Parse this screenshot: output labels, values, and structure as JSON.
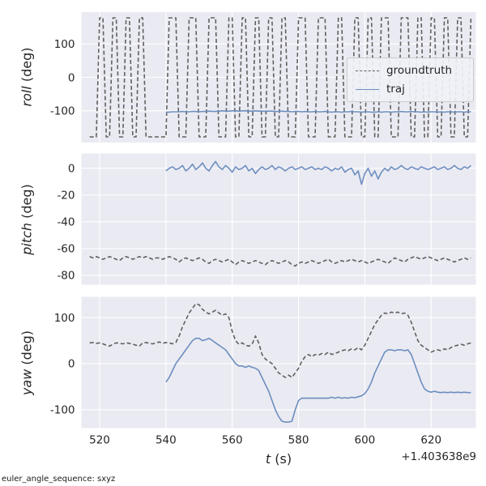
{
  "figure": {
    "background": "#ffffff",
    "axes_background": "#eaeaf2",
    "grid_color": "#ffffff",
    "tick_color": "#262626",
    "xlabel_var": "t",
    "xlabel_unit": "(s)",
    "x_offset_text": "+1.403638e9",
    "footer_note": "euler_angle_sequence: sxyz",
    "legend": {
      "position": "upper-right-of-roll-subplot",
      "entries": [
        {
          "label": "groundtruth",
          "color": "#606060",
          "dash": true
        },
        {
          "label": "traj",
          "color": "#6c8ebf",
          "dash": false
        }
      ]
    }
  },
  "t_groundtruth": [
    517,
    518,
    519,
    520,
    521,
    522,
    523,
    524,
    525,
    526,
    527,
    528,
    529,
    530,
    531,
    532,
    533,
    534,
    535,
    536,
    537,
    538,
    539,
    540,
    541,
    542,
    543,
    544,
    545,
    546,
    547,
    548,
    549,
    550,
    551,
    552,
    553,
    554,
    555,
    556,
    557,
    558,
    559,
    560,
    561,
    562,
    563,
    564,
    565,
    566,
    567,
    568,
    569,
    570,
    571,
    572,
    573,
    574,
    575,
    576,
    577,
    578,
    579,
    580,
    581,
    582,
    583,
    584,
    585,
    586,
    587,
    588,
    589,
    590,
    591,
    592,
    593,
    594,
    595,
    596,
    597,
    598,
    599,
    600,
    601,
    602,
    603,
    604,
    605,
    606,
    607,
    608,
    609,
    610,
    611,
    612,
    613,
    614,
    615,
    616,
    617,
    618,
    619,
    620,
    621,
    622,
    623,
    624,
    625,
    626,
    627,
    628,
    629,
    630,
    631,
    632
  ],
  "t_traj": [
    540,
    541,
    542,
    543,
    544,
    545,
    546,
    547,
    548,
    549,
    550,
    551,
    552,
    553,
    554,
    555,
    556,
    557,
    558,
    559,
    560,
    561,
    562,
    563,
    564,
    565,
    566,
    567,
    568,
    569,
    570,
    571,
    572,
    573,
    574,
    575,
    576,
    577,
    578,
    579,
    580,
    581,
    582,
    583,
    584,
    585,
    586,
    587,
    588,
    589,
    590,
    591,
    592,
    593,
    594,
    595,
    596,
    597,
    598,
    599,
    600,
    601,
    602,
    603,
    604,
    605,
    606,
    607,
    608,
    609,
    610,
    611,
    612,
    613,
    614,
    615,
    616,
    617,
    618,
    619,
    620,
    621,
    622,
    623,
    624,
    625,
    626,
    627,
    628,
    629,
    630,
    631,
    632
  ],
  "chart_data": [
    {
      "type": "line",
      "subplot": "roll",
      "ylabel_var": "roll",
      "ylabel_unit": "(deg)",
      "xlim": [
        514.5,
        633.5
      ],
      "ylim": [
        -195,
        195
      ],
      "xticks": [
        520,
        540,
        560,
        580,
        600,
        620
      ],
      "yticks": [
        -100,
        0,
        100
      ],
      "grid": true,
      "series": [
        {
          "name": "groundtruth",
          "color": "#606060",
          "dash": true,
          "x_ref": "t_groundtruth",
          "y": [
            -178,
            -178,
            -178,
            178,
            178,
            -178,
            -178,
            178,
            178,
            -178,
            -178,
            178,
            178,
            -178,
            -178,
            178,
            178,
            -178,
            -178,
            -178,
            -178,
            -178,
            -178,
            -178,
            178,
            178,
            178,
            -178,
            -178,
            -178,
            178,
            178,
            178,
            -178,
            -178,
            -178,
            178,
            178,
            178,
            -178,
            -178,
            -178,
            178,
            178,
            -178,
            -178,
            178,
            178,
            -178,
            -178,
            178,
            178,
            -178,
            -178,
            178,
            178,
            -178,
            -178,
            178,
            178,
            -178,
            -178,
            -178,
            178,
            178,
            178,
            -178,
            -178,
            -178,
            178,
            178,
            178,
            -178,
            -178,
            -178,
            178,
            178,
            -178,
            -178,
            -178,
            178,
            178,
            -178,
            -178,
            178,
            178,
            -178,
            -178,
            178,
            178,
            178,
            -178,
            -178,
            -178,
            178,
            178,
            178,
            -178,
            -178,
            178,
            178,
            -178,
            -178,
            178,
            178,
            -178,
            -178,
            178,
            178,
            -178,
            -178,
            178,
            178,
            -178,
            -178,
            178,
            178
          ]
        },
        {
          "name": "traj",
          "color": "#6c8ebf",
          "dash": false,
          "x_ref": "t_traj",
          "y": [
            -104,
            -104,
            -103,
            -103,
            -103,
            -102,
            -103,
            -103,
            -102,
            -102,
            -103,
            -102,
            -102,
            -101,
            -102,
            -102,
            -101,
            -100,
            -101,
            -101,
            -100,
            -100,
            -101,
            -100,
            -100,
            -101,
            -101,
            -100,
            -101,
            -101,
            -102,
            -101,
            -101,
            -102,
            -102,
            -101,
            -102,
            -102,
            -103,
            -102,
            -102,
            -103,
            -102,
            -103,
            -103,
            -102,
            -103,
            -103,
            -102,
            -103,
            -104,
            -103,
            -103,
            -104,
            -103,
            -103,
            -102,
            -103,
            -103,
            -104,
            -103,
            -103,
            -104,
            -104,
            -103,
            -104,
            -103,
            -103,
            -104,
            -103,
            -103,
            -102,
            -103,
            -103,
            -102,
            -103,
            -103,
            -104,
            -103,
            -104,
            -103,
            -103,
            -104,
            -103,
            -104,
            -103,
            -103,
            -104,
            -103,
            -103,
            -104,
            -103,
            -103
          ]
        }
      ]
    },
    {
      "type": "line",
      "subplot": "pitch",
      "ylabel_var": "pitch",
      "ylabel_unit": "(deg)",
      "xlim": [
        514.5,
        633.5
      ],
      "ylim": [
        -87,
        11
      ],
      "xticks": [
        520,
        540,
        560,
        580,
        600,
        620
      ],
      "yticks": [
        0,
        -20,
        -40,
        -60,
        -80
      ],
      "grid": true,
      "series": [
        {
          "name": "groundtruth",
          "color": "#606060",
          "dash": true,
          "x_ref": "t_groundtruth",
          "y": [
            -66,
            -67,
            -66,
            -67,
            -68,
            -67,
            -66,
            -67,
            -68,
            -69,
            -67,
            -66,
            -67,
            -68,
            -67,
            -66,
            -67,
            -66,
            -67,
            -68,
            -67,
            -67,
            -68,
            -67,
            -66,
            -67,
            -68,
            -70,
            -68,
            -67,
            -68,
            -69,
            -68,
            -67,
            -68,
            -70,
            -71,
            -69,
            -68,
            -69,
            -70,
            -69,
            -68,
            -70,
            -72,
            -70,
            -69,
            -70,
            -71,
            -70,
            -69,
            -70,
            -71,
            -72,
            -70,
            -69,
            -70,
            -71,
            -70,
            -69,
            -70,
            -72,
            -73,
            -71,
            -70,
            -71,
            -70,
            -69,
            -70,
            -71,
            -70,
            -69,
            -68,
            -70,
            -71,
            -70,
            -69,
            -70,
            -69,
            -68,
            -69,
            -70,
            -69,
            -70,
            -71,
            -70,
            -69,
            -68,
            -69,
            -70,
            -71,
            -69,
            -67,
            -68,
            -69,
            -70,
            -68,
            -67,
            -66,
            -67,
            -68,
            -67,
            -66,
            -67,
            -68,
            -69,
            -68,
            -67,
            -68,
            -69,
            -70,
            -69,
            -68,
            -67,
            -68,
            -67
          ]
        },
        {
          "name": "traj",
          "color": "#6c8ebf",
          "dash": false,
          "x_ref": "t_traj",
          "y": [
            -2,
            0,
            1,
            -1,
            0,
            2,
            -2,
            0,
            3,
            -1,
            1,
            4,
            0,
            -2,
            2,
            5,
            1,
            -1,
            2,
            0,
            -3,
            1,
            -1,
            0,
            2,
            -2,
            0,
            -4,
            -1,
            1,
            -1,
            0,
            2,
            -1,
            1,
            0,
            -2,
            0,
            1,
            -1,
            0,
            1,
            -1,
            0,
            1,
            -1,
            0,
            -1,
            1,
            0,
            -2,
            0,
            -1,
            1,
            -3,
            -1,
            0,
            -5,
            -2,
            -12,
            -4,
            0,
            -6,
            -2,
            -8,
            -3,
            0,
            -2,
            1,
            -1,
            0,
            2,
            0,
            -1,
            1,
            0,
            -1,
            1,
            0,
            -1,
            0,
            1,
            -1,
            0,
            1,
            -1,
            0,
            2,
            0,
            -1,
            1,
            0,
            2
          ]
        }
      ]
    },
    {
      "type": "line",
      "subplot": "yaw",
      "ylabel_var": "yaw",
      "ylabel_unit": "(deg)",
      "xlim": [
        514.5,
        633.5
      ],
      "ylim": [
        -140,
        145
      ],
      "xticks": [
        520,
        540,
        560,
        580,
        600,
        620
      ],
      "yticks": [
        -100,
        0,
        100
      ],
      "grid": true,
      "series": [
        {
          "name": "groundtruth",
          "color": "#606060",
          "dash": true,
          "x_ref": "t_groundtruth",
          "y": [
            45,
            46,
            44,
            45,
            43,
            40,
            38,
            42,
            45,
            44,
            43,
            45,
            44,
            42,
            40,
            38,
            45,
            46,
            44,
            43,
            45,
            47,
            44,
            46,
            45,
            43,
            46,
            60,
            80,
            95,
            110,
            120,
            130,
            128,
            118,
            112,
            108,
            112,
            116,
            110,
            105,
            108,
            100,
            70,
            50,
            42,
            45,
            40,
            38,
            42,
            60,
            45,
            20,
            10,
            5,
            0,
            -10,
            -20,
            -25,
            -30,
            -25,
            -30,
            -20,
            -10,
            5,
            15,
            20,
            15,
            20,
            18,
            22,
            20,
            25,
            20,
            22,
            25,
            28,
            30,
            28,
            32,
            30,
            35,
            30,
            40,
            55,
            70,
            85,
            95,
            105,
            110,
            108,
            112,
            110,
            112,
            108,
            110,
            105,
            90,
            70,
            50,
            40,
            35,
            30,
            25,
            28,
            30,
            28,
            32,
            30,
            35,
            38,
            40,
            42,
            40,
            43,
            45
          ]
        },
        {
          "name": "traj",
          "color": "#6c8ebf",
          "dash": false,
          "x_ref": "t_traj",
          "y": [
            -40,
            -30,
            -15,
            0,
            10,
            20,
            30,
            40,
            50,
            55,
            55,
            50,
            52,
            55,
            50,
            45,
            40,
            35,
            30,
            20,
            10,
            0,
            -5,
            -5,
            -8,
            -5,
            -8,
            -10,
            -15,
            -30,
            -45,
            -60,
            -80,
            -100,
            -115,
            -125,
            -127,
            -127,
            -125,
            -100,
            -80,
            -75,
            -75,
            -75,
            -75,
            -75,
            -75,
            -75,
            -75,
            -75,
            -73,
            -75,
            -73,
            -75,
            -74,
            -75,
            -73,
            -74,
            -72,
            -70,
            -65,
            -55,
            -40,
            -20,
            -5,
            10,
            25,
            30,
            30,
            28,
            30,
            30,
            28,
            30,
            20,
            0,
            -20,
            -40,
            -55,
            -60,
            -62,
            -60,
            -62,
            -63,
            -62,
            -63,
            -62,
            -63,
            -62,
            -63,
            -62,
            -63,
            -63
          ]
        }
      ]
    }
  ]
}
